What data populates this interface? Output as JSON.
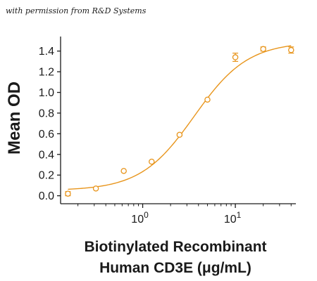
{
  "attribution": "with permission from R&D Systems",
  "colors": {
    "series": "#E8951C",
    "axis": "#1a1a1a",
    "text": "#1a1a1a"
  },
  "chart_data": {
    "type": "scatter",
    "ylabel": "Mean OD",
    "xlabel_lines": [
      "Biotinylated Recombinant",
      "Human CD3E (μg/mL)"
    ],
    "x_scale": "log",
    "xlim": [
      0.13,
      45
    ],
    "ylim": [
      -0.05,
      1.5
    ],
    "x_ticks": [
      {
        "value": 1,
        "base": "10",
        "exp": "0"
      },
      {
        "value": 10,
        "base": "10",
        "exp": "1"
      }
    ],
    "y_ticks": [
      {
        "value": 0.0,
        "label": "0.0"
      },
      {
        "value": 0.2,
        "label": "0.2"
      },
      {
        "value": 0.4,
        "label": "0.4"
      },
      {
        "value": 0.6,
        "label": "0.6"
      },
      {
        "value": 0.8,
        "label": "0.8"
      },
      {
        "value": 1.0,
        "label": "1.0"
      },
      {
        "value": 1.2,
        "label": "1.2"
      },
      {
        "value": 1.4,
        "label": "1.4"
      }
    ],
    "points": [
      {
        "x": 0.156,
        "y": 0.02,
        "err": 0.02
      },
      {
        "x": 0.3125,
        "y": 0.07,
        "err": 0
      },
      {
        "x": 0.625,
        "y": 0.24,
        "err": 0
      },
      {
        "x": 1.25,
        "y": 0.33,
        "err": 0
      },
      {
        "x": 2.5,
        "y": 0.59,
        "err": 0.01
      },
      {
        "x": 5,
        "y": 0.93,
        "err": 0
      },
      {
        "x": 10,
        "y": 1.34,
        "err": 0.04
      },
      {
        "x": 20,
        "y": 1.42,
        "err": 0.02
      },
      {
        "x": 40,
        "y": 1.41,
        "err": 0.03
      }
    ],
    "fit": {
      "model": "4PL",
      "bottom": 0.05,
      "top": 1.49,
      "ec50": 3.6,
      "hill": 1.5
    }
  }
}
